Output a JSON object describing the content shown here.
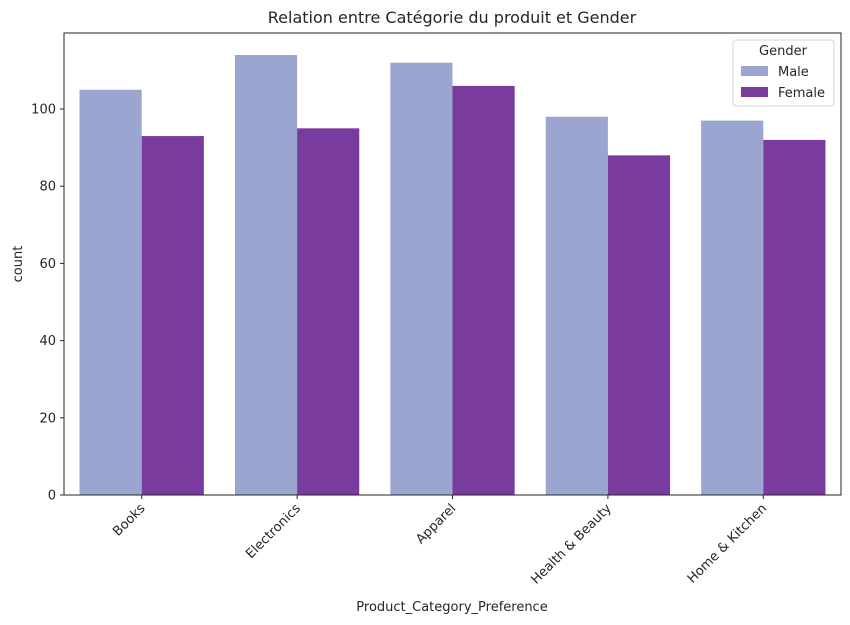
{
  "chart_data": {
    "type": "bar",
    "title": "Relation entre Catégorie du produit et Gender",
    "xlabel": "Product_Category_Preference",
    "ylabel": "count",
    "categories": [
      "Books",
      "Electronics",
      "Apparel",
      "Health & Beauty",
      "Home & Kitchen"
    ],
    "series": [
      {
        "name": "Male",
        "values": [
          105,
          114,
          112,
          98,
          97
        ],
        "color": "#9aa5d0"
      },
      {
        "name": "Female",
        "values": [
          93,
          95,
          106,
          88,
          92
        ],
        "color": "#7a3b9e"
      }
    ],
    "ylim": [
      0,
      119.7
    ],
    "yticks": [
      0,
      20,
      40,
      60,
      80,
      100
    ],
    "grid": false,
    "legend": {
      "title": "Gender",
      "placement": "top-right"
    }
  }
}
